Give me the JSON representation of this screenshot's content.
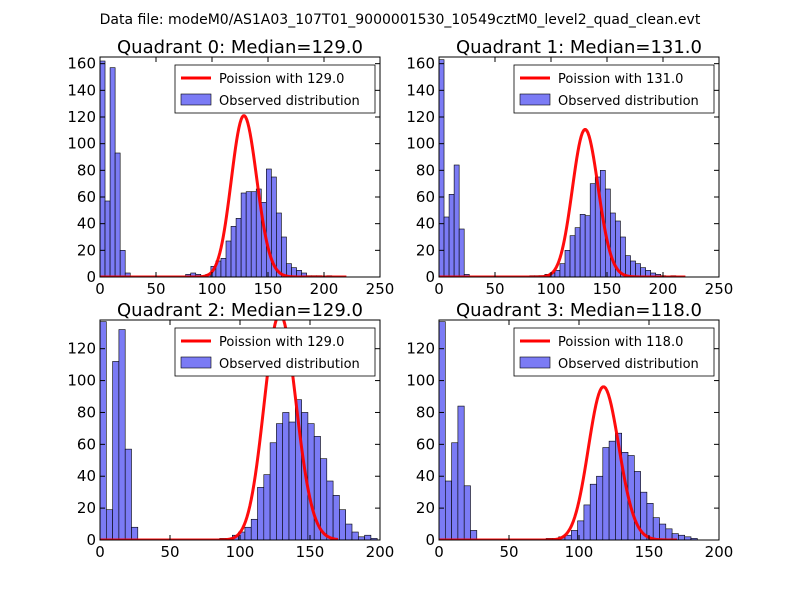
{
  "figure_title": "Data file: modeM0/AS1A03_107T01_9000001530_10549cztM0_level2_quad_clean.evt",
  "colors": {
    "observed_fill": "#7b7bf5",
    "observed_edge": "#000000",
    "poisson_line": "#ff0000"
  },
  "chart_data": [
    {
      "type": "bar",
      "title": "Quadrant 0: Median=129.0",
      "xlim": [
        0,
        250
      ],
      "ylim": [
        0,
        165
      ],
      "xticks": [
        0,
        50,
        100,
        150,
        200,
        250
      ],
      "yticks": [
        0,
        20,
        40,
        60,
        80,
        100,
        120,
        140,
        160
      ],
      "legend_location": "top-right",
      "legend": [
        "Poission with 129.0",
        "Observed distribution"
      ],
      "bin_width": 4.5,
      "observed": {
        "name": "Observed distribution",
        "bins": [
          [
            0,
            162
          ],
          [
            4.5,
            57
          ],
          [
            9,
            157
          ],
          [
            13.5,
            93
          ],
          [
            18,
            20
          ],
          [
            22.5,
            3
          ],
          [
            27,
            0
          ],
          [
            31.5,
            0
          ],
          [
            36,
            0
          ],
          [
            40.5,
            0
          ],
          [
            45,
            0
          ],
          [
            49.5,
            0
          ],
          [
            54,
            0
          ],
          [
            58.5,
            0
          ],
          [
            63,
            0
          ],
          [
            67.5,
            0
          ],
          [
            72,
            0
          ],
          [
            76.5,
            2
          ],
          [
            81,
            3
          ],
          [
            85.5,
            2
          ],
          [
            90,
            1
          ],
          [
            94.5,
            2
          ],
          [
            99,
            8
          ],
          [
            103.5,
            12
          ],
          [
            108,
            14
          ],
          [
            112.5,
            27
          ],
          [
            117,
            38
          ],
          [
            121.5,
            44
          ],
          [
            126,
            63
          ],
          [
            130.5,
            64
          ],
          [
            135,
            64
          ],
          [
            139.5,
            66
          ],
          [
            144,
            56
          ],
          [
            148.5,
            81
          ],
          [
            153,
            75
          ],
          [
            157.5,
            48
          ],
          [
            162,
            30
          ],
          [
            166.5,
            10
          ],
          [
            171,
            7
          ],
          [
            175.5,
            5
          ],
          [
            180,
            3
          ],
          [
            184.5,
            1
          ],
          [
            189,
            1
          ],
          [
            193.5,
            1
          ],
          [
            198,
            0
          ],
          [
            202.5,
            1
          ]
        ]
      },
      "poisson": {
        "name": "Poission with 129.0",
        "mean": 129.0
      }
    },
    {
      "type": "bar",
      "title": "Quadrant 1: Median=131.0",
      "xlim": [
        0,
        250
      ],
      "ylim": [
        0,
        165
      ],
      "xticks": [
        0,
        50,
        100,
        150,
        200,
        250
      ],
      "yticks": [
        0,
        20,
        40,
        60,
        80,
        100,
        120,
        140,
        160
      ],
      "legend_location": "top-right",
      "legend": [
        "Poission with 131.0",
        "Observed distribution"
      ],
      "bin_width": 4.5,
      "observed": {
        "name": "Observed distribution",
        "bins": [
          [
            0,
            163
          ],
          [
            4.5,
            45
          ],
          [
            9,
            62
          ],
          [
            13.5,
            84
          ],
          [
            18,
            36
          ],
          [
            22.5,
            2
          ],
          [
            27,
            0
          ],
          [
            81,
            1
          ],
          [
            85.5,
            1
          ],
          [
            90,
            1
          ],
          [
            94.5,
            2
          ],
          [
            99,
            3
          ],
          [
            103.5,
            5
          ],
          [
            108,
            10
          ],
          [
            112.5,
            20
          ],
          [
            117,
            31
          ],
          [
            121.5,
            37
          ],
          [
            126,
            47
          ],
          [
            130.5,
            46
          ],
          [
            135,
            70
          ],
          [
            139.5,
            75
          ],
          [
            144,
            80
          ],
          [
            148.5,
            66
          ],
          [
            153,
            48
          ],
          [
            157.5,
            42
          ],
          [
            162,
            30
          ],
          [
            166.5,
            16
          ],
          [
            171,
            12
          ],
          [
            175.5,
            10
          ],
          [
            180,
            7
          ],
          [
            184.5,
            5
          ],
          [
            189,
            3
          ],
          [
            193.5,
            2
          ],
          [
            198,
            1
          ],
          [
            202.5,
            0
          ],
          [
            207,
            1
          ]
        ]
      },
      "poisson": {
        "name": "Poission with 131.0",
        "mean": 131.0
      }
    },
    {
      "type": "bar",
      "title": "Quadrant 2: Median=129.0",
      "xlim": [
        0,
        200
      ],
      "ylim": [
        0,
        138
      ],
      "xticks": [
        0,
        50,
        100,
        150,
        200
      ],
      "yticks": [
        0,
        20,
        40,
        60,
        80,
        100,
        120
      ],
      "legend_location": "top-right",
      "legend": [
        "Poission with 129.0",
        "Observed distribution"
      ],
      "bin_width": 4.5,
      "observed": {
        "name": "Observed distribution",
        "bins": [
          [
            0,
            137
          ],
          [
            4.5,
            19
          ],
          [
            9,
            112
          ],
          [
            13.5,
            132
          ],
          [
            18,
            57
          ],
          [
            22.5,
            8
          ],
          [
            27,
            0
          ],
          [
            85.5,
            1
          ],
          [
            90,
            1
          ],
          [
            94.5,
            3
          ],
          [
            99,
            5
          ],
          [
            103.5,
            8
          ],
          [
            108,
            13
          ],
          [
            112.5,
            33
          ],
          [
            117,
            41
          ],
          [
            121.5,
            61
          ],
          [
            126,
            73
          ],
          [
            130.5,
            80
          ],
          [
            135,
            74
          ],
          [
            139.5,
            88
          ],
          [
            144,
            80
          ],
          [
            148.5,
            73
          ],
          [
            153,
            65
          ],
          [
            157.5,
            51
          ],
          [
            162,
            37
          ],
          [
            166.5,
            28
          ],
          [
            171,
            19
          ],
          [
            175.5,
            10
          ],
          [
            180,
            5
          ],
          [
            184.5,
            2
          ],
          [
            189,
            3
          ],
          [
            193.5,
            1
          ]
        ]
      },
      "poisson": {
        "name": "Poission with 129.0",
        "mean": 129.0
      }
    },
    {
      "type": "bar",
      "title": "Quadrant 3: Median=118.0",
      "xlim": [
        0,
        200
      ],
      "ylim": [
        0,
        138
      ],
      "xticks": [
        0,
        50,
        100,
        150,
        200
      ],
      "yticks": [
        0,
        20,
        40,
        60,
        80,
        100,
        120
      ],
      "legend_location": "top-right",
      "legend": [
        "Poission with 118.0",
        "Observed distribution"
      ],
      "bin_width": 4.5,
      "observed": {
        "name": "Observed distribution",
        "bins": [
          [
            0,
            137
          ],
          [
            4.5,
            37
          ],
          [
            9,
            61
          ],
          [
            13.5,
            84
          ],
          [
            18,
            34
          ],
          [
            22.5,
            6
          ],
          [
            27,
            0
          ],
          [
            76.5,
            1
          ],
          [
            81,
            1
          ],
          [
            85.5,
            2
          ],
          [
            90,
            3
          ],
          [
            94.5,
            6
          ],
          [
            99,
            12
          ],
          [
            103.5,
            22
          ],
          [
            108,
            35
          ],
          [
            112.5,
            40
          ],
          [
            117,
            58
          ],
          [
            121.5,
            62
          ],
          [
            126,
            67
          ],
          [
            130.5,
            55
          ],
          [
            135,
            53
          ],
          [
            139.5,
            43
          ],
          [
            144,
            30
          ],
          [
            148.5,
            23
          ],
          [
            153,
            14
          ],
          [
            157.5,
            10
          ],
          [
            162,
            7
          ],
          [
            166.5,
            4
          ],
          [
            171,
            3
          ],
          [
            175.5,
            2
          ],
          [
            180,
            1
          ]
        ]
      },
      "poisson": {
        "name": "Poission with 118.0",
        "mean": 118.0
      }
    }
  ]
}
